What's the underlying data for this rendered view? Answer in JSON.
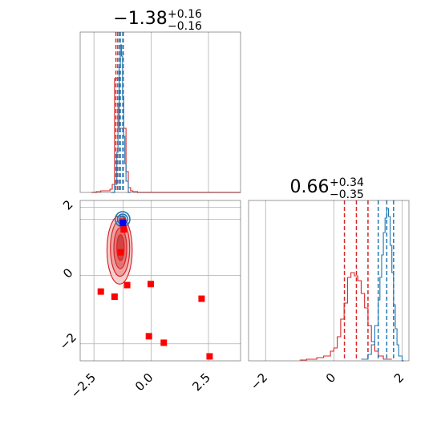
{
  "chart_data": [
    {
      "type": "histogram",
      "panel": "x-marginal",
      "title_main": "−1.38",
      "title_sup": "+0.16",
      "title_sub": "−0.16",
      "xlim": [
        -3.1,
        3.9
      ],
      "ylim": [
        0,
        1.0
      ],
      "xticks": [
        -2.5,
        0.0,
        2.5
      ],
      "grid": true,
      "series": [
        {
          "color": "#d62728",
          "bins_x": [
            -2.6,
            -2.4,
            -2.2,
            -2.0,
            -1.8,
            -1.7,
            -1.6,
            -1.5,
            -1.4,
            -1.3,
            -1.2,
            -1.1,
            -1.0,
            -0.9,
            -0.8,
            -0.6,
            3.9
          ],
          "heights": [
            0.0,
            0.005,
            0.01,
            0.01,
            0.02,
            0.05,
            0.71,
            0.71,
            0.4,
            0.4,
            0.4,
            0.13,
            0.03,
            0.01,
            0.005,
            0.0
          ],
          "quantile_lines": [
            -1.54,
            -1.38,
            -1.22
          ]
        },
        {
          "color": "#1f77b4",
          "bins_x": [
            -1.75,
            -1.6,
            -1.5,
            -1.45,
            -1.4,
            -1.35,
            -1.3,
            -1.25,
            -1.2,
            -1.15,
            -1.1,
            -1.0,
            -0.9
          ],
          "heights": [
            0.0,
            0.05,
            0.25,
            0.55,
            0.78,
            0.92,
            0.85,
            0.6,
            0.35,
            0.18,
            0.07,
            0.0
          ],
          "quantile_lines": [
            -1.46,
            -1.35,
            -1.24
          ]
        }
      ]
    },
    {
      "type": "scatter",
      "panel": "joint",
      "xlim": [
        -3.1,
        3.9
      ],
      "ylim": [
        -2.5,
        2.2
      ],
      "xticks": [
        -2.5,
        0.0,
        2.5
      ],
      "yticks": [
        -2,
        0,
        2
      ],
      "grid": true,
      "truth_line": {
        "x": -1.23,
        "y": 1.65,
        "color": "#7f7f7f"
      },
      "red_square_markers": [
        {
          "x": -1.25,
          "y": 1.58
        },
        {
          "x": -1.2,
          "y": 1.35
        },
        {
          "x": -1.33,
          "y": 0.68
        },
        {
          "x": -1.05,
          "y": -0.28
        },
        {
          "x": -0.02,
          "y": -0.25
        },
        {
          "x": -2.2,
          "y": -0.47
        },
        {
          "x": -1.6,
          "y": -0.62
        },
        {
          "x": 2.2,
          "y": -0.68
        },
        {
          "x": -0.1,
          "y": -1.78
        },
        {
          "x": 0.55,
          "y": -1.97
        },
        {
          "x": 2.55,
          "y": -2.37
        }
      ],
      "blue_marker": {
        "x": -1.23,
        "y": 1.54
      },
      "red_contours": [
        {
          "cx": -1.38,
          "cy": 0.75,
          "rx": 0.55,
          "ry": 1.0
        },
        {
          "cx": -1.36,
          "cy": 0.8,
          "rx": 0.42,
          "ry": 0.82
        },
        {
          "cx": -1.35,
          "cy": 0.8,
          "rx": 0.28,
          "ry": 0.6
        },
        {
          "cx": -1.34,
          "cy": 0.82,
          "rx": 0.16,
          "ry": 0.38
        }
      ],
      "blue_contours": [
        {
          "cx": -1.25,
          "cy": 1.65,
          "rx": 0.32,
          "ry": 0.22
        },
        {
          "cx": -1.25,
          "cy": 1.65,
          "rx": 0.22,
          "ry": 0.15
        },
        {
          "cx": -1.25,
          "cy": 1.66,
          "rx": 0.13,
          "ry": 0.09
        }
      ]
    },
    {
      "type": "histogram",
      "panel": "y-marginal",
      "title_main": "0.66",
      "title_sup": "+0.34",
      "title_sub": "−0.35",
      "xlim": [
        -2.5,
        2.2
      ],
      "ylim": [
        0,
        1.0
      ],
      "xticks": [
        -2,
        0,
        2
      ],
      "grid": true,
      "series": [
        {
          "color": "#d62728",
          "bins_x": [
            -1.0,
            -0.8,
            -0.5,
            -0.3,
            -0.1,
            0.0,
            0.1,
            0.2,
            0.3,
            0.4,
            0.5,
            0.6,
            0.7,
            0.8,
            0.9,
            1.0,
            1.1,
            1.2,
            1.3,
            1.45,
            1.7
          ],
          "heights": [
            0.005,
            0.01,
            0.02,
            0.03,
            0.06,
            0.08,
            0.15,
            0.26,
            0.36,
            0.52,
            0.55,
            0.53,
            0.5,
            0.42,
            0.33,
            0.22,
            0.12,
            0.06,
            0.03,
            0.01
          ],
          "quantile_lines": [
            0.31,
            0.66,
            1.0
          ]
        },
        {
          "color": "#1f77b4",
          "bins_x": [
            0.8,
            1.0,
            1.1,
            1.2,
            1.3,
            1.35,
            1.4,
            1.45,
            1.5,
            1.55,
            1.6,
            1.65,
            1.7,
            1.75,
            1.8,
            1.85,
            1.9,
            2.0,
            2.05
          ],
          "heights": [
            0.01,
            0.04,
            0.1,
            0.22,
            0.38,
            0.52,
            0.66,
            0.8,
            0.89,
            0.95,
            0.9,
            0.72,
            0.55,
            0.35,
            0.2,
            0.1,
            0.03,
            0.0
          ],
          "quantile_lines": [
            1.3,
            1.55,
            1.75
          ]
        }
      ]
    }
  ]
}
